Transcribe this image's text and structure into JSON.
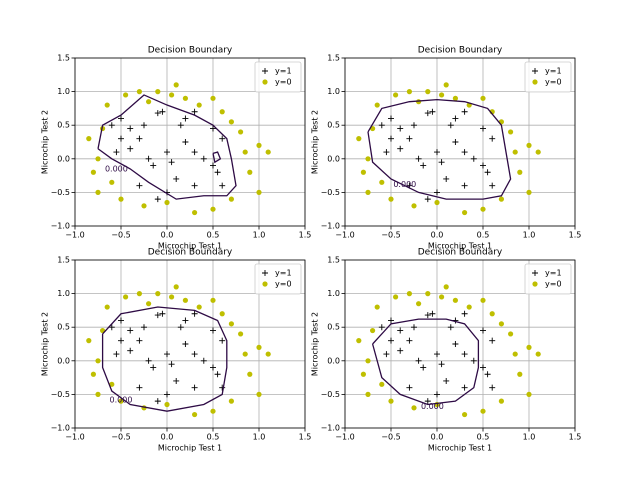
{
  "chart_data": [
    {
      "type": "scatter",
      "title": "Decision Boundary",
      "xlabel": "Microchip Test 1",
      "ylabel": "Microchip Test 2",
      "xlim": [
        -1,
        1.5
      ],
      "ylim": [
        -1,
        1.5
      ],
      "xticks": [
        {
          "value": -1,
          "label": "−1.0"
        },
        {
          "value": -0.5,
          "label": "−0.5"
        },
        {
          "value": 0,
          "label": "0.0"
        },
        {
          "value": 0.5,
          "label": "0.5"
        },
        {
          "value": 1,
          "label": "1.0"
        },
        {
          "value": 1.5,
          "label": "1.5"
        }
      ],
      "yticks": [
        {
          "value": -1,
          "label": "−1.0"
        },
        {
          "value": -0.5,
          "label": "−0.5"
        },
        {
          "value": 0,
          "label": "0.0"
        },
        {
          "value": 0.5,
          "label": "0.5"
        },
        {
          "value": 1,
          "label": "1.0"
        },
        {
          "value": 1.5,
          "label": "1.5"
        }
      ],
      "grid": true,
      "legend": "upper right",
      "series": [
        {
          "name": "y=1",
          "color": "#000000",
          "marker": "+",
          "x": [
            -0.05,
            -0.1,
            -0.25,
            -0.4,
            -0.5,
            -0.6,
            -0.3,
            -0.5,
            -0.55,
            -0.4,
            -0.2,
            0.0,
            -0.15,
            0.2,
            0.3,
            0.4,
            0.5,
            0.55,
            0.6,
            0.3,
            0.1,
            0.0,
            -0.1,
            0.15,
            0.2,
            0.3,
            0.5,
            0.6,
            0.05,
            -0.3
          ],
          "y": [
            0.7,
            0.68,
            0.5,
            0.45,
            0.6,
            0.5,
            0.3,
            0.3,
            0.1,
            0.15,
            0.0,
            0.1,
            -0.1,
            0.25,
            0.1,
            0.0,
            -0.1,
            -0.2,
            -0.4,
            -0.4,
            -0.3,
            -0.5,
            -0.6,
            0.5,
            0.6,
            0.7,
            0.45,
            0.3,
            -0.05,
            -0.4
          ]
        },
        {
          "name": "y=0",
          "color": "#bfbf00",
          "marker": "o",
          "x": [
            -0.3,
            -0.1,
            0.1,
            0.2,
            0.35,
            0.5,
            0.6,
            0.7,
            0.8,
            0.85,
            1.0,
            1.1,
            0.9,
            1.0,
            0.7,
            0.5,
            0.3,
            0.0,
            -0.25,
            -0.5,
            -0.6,
            -0.75,
            -0.8,
            -0.75,
            -0.85,
            -0.7,
            -0.65,
            -0.45,
            -0.2,
            0.05
          ],
          "y": [
            1.0,
            1.0,
            1.1,
            0.9,
            0.8,
            0.9,
            0.7,
            0.55,
            0.4,
            0.1,
            0.2,
            0.1,
            -0.2,
            -0.5,
            -0.6,
            -0.75,
            -0.8,
            -0.65,
            -0.7,
            -0.6,
            -0.35,
            -0.5,
            -0.2,
            0.0,
            0.3,
            0.45,
            0.8,
            0.95,
            0.85,
            0.95
          ]
        }
      ],
      "contour": {
        "color": "#2e0b45",
        "x": [
          -0.75,
          -0.7,
          -0.5,
          -0.25,
          0,
          0.3,
          0.5,
          0.65,
          0.7,
          0.75,
          0.65,
          0.4,
          0.1,
          -0.2,
          -0.4,
          -0.6,
          -0.75,
          null,
          0.5,
          0.55,
          0.58,
          0.52,
          0.5
        ],
        "y": [
          0.15,
          0.5,
          0.65,
          0.95,
          0.8,
          0.65,
          0.5,
          0.3,
          0.0,
          -0.4,
          -0.55,
          -0.55,
          -0.6,
          -0.35,
          -0.15,
          0.0,
          0.15,
          null,
          0.08,
          0.1,
          0.0,
          -0.05,
          0.08
        ]
      },
      "annotations": [
        {
          "text": "0.000",
          "x": -0.55,
          "y": -0.15
        }
      ]
    },
    {
      "type": "scatter",
      "title": "Decision Boundary",
      "xlabel": "Microchip Test 1",
      "ylabel": "Microchip Test 2",
      "xlim": [
        -1,
        1.5
      ],
      "ylim": [
        -1,
        1.5
      ],
      "xticks": [
        {
          "value": -1,
          "label": "−1.0"
        },
        {
          "value": -0.5,
          "label": "−0.5"
        },
        {
          "value": 0,
          "label": "0.0"
        },
        {
          "value": 0.5,
          "label": "0.5"
        },
        {
          "value": 1,
          "label": "1.0"
        },
        {
          "value": 1.5,
          "label": "1.5"
        }
      ],
      "yticks": [
        {
          "value": -1,
          "label": "−1.0"
        },
        {
          "value": -0.5,
          "label": "−0.5"
        },
        {
          "value": 0,
          "label": "0.0"
        },
        {
          "value": 0.5,
          "label": "0.5"
        },
        {
          "value": 1,
          "label": "1.0"
        },
        {
          "value": 1.5,
          "label": "1.5"
        }
      ],
      "grid": true,
      "legend": "upper right",
      "series": [
        {
          "name": "y=1",
          "color": "#000000",
          "marker": "+",
          "x": [
            -0.05,
            -0.1,
            -0.25,
            -0.4,
            -0.5,
            -0.6,
            -0.3,
            -0.5,
            -0.55,
            -0.4,
            -0.2,
            0.0,
            -0.15,
            0.2,
            0.3,
            0.4,
            0.5,
            0.55,
            0.6,
            0.3,
            0.1,
            0.0,
            -0.1,
            0.15,
            0.2,
            0.3,
            0.5,
            0.6,
            0.05,
            -0.3
          ],
          "y": [
            0.7,
            0.68,
            0.5,
            0.45,
            0.6,
            0.5,
            0.3,
            0.3,
            0.1,
            0.15,
            0.0,
            0.1,
            -0.1,
            0.25,
            0.1,
            0.0,
            -0.1,
            -0.2,
            -0.4,
            -0.4,
            -0.3,
            -0.5,
            -0.6,
            0.5,
            0.6,
            0.7,
            0.45,
            0.3,
            -0.05,
            -0.4
          ]
        },
        {
          "name": "y=0",
          "color": "#bfbf00",
          "marker": "o",
          "x": [
            -0.3,
            -0.1,
            0.1,
            0.2,
            0.35,
            0.5,
            0.6,
            0.7,
            0.8,
            0.85,
            1.0,
            1.1,
            0.9,
            1.0,
            0.7,
            0.5,
            0.3,
            0.0,
            -0.25,
            -0.5,
            -0.6,
            -0.75,
            -0.8,
            -0.75,
            -0.85,
            -0.7,
            -0.65,
            -0.45,
            -0.2,
            0.05
          ],
          "y": [
            1.0,
            1.0,
            1.1,
            0.9,
            0.8,
            0.9,
            0.7,
            0.55,
            0.4,
            0.1,
            0.2,
            0.1,
            -0.2,
            -0.5,
            -0.6,
            -0.75,
            -0.8,
            -0.65,
            -0.7,
            -0.6,
            -0.35,
            -0.5,
            -0.2,
            0.0,
            0.3,
            0.45,
            0.8,
            0.95,
            0.85,
            0.95
          ]
        }
      ],
      "contour": {
        "color": "#2e0b45",
        "x": [
          -0.75,
          -0.6,
          -0.3,
          0,
          0.3,
          0.55,
          0.7,
          0.75,
          0.8,
          0.7,
          0.5,
          0.1,
          -0.2,
          -0.5,
          -0.7,
          -0.75
        ],
        "y": [
          0.4,
          0.75,
          0.85,
          0.88,
          0.85,
          0.75,
          0.5,
          0.1,
          -0.3,
          -0.55,
          -0.6,
          -0.6,
          -0.5,
          -0.3,
          -0.05,
          0.4
        ]
      },
      "annotations": [
        {
          "text": "0.000",
          "x": -0.35,
          "y": -0.38
        }
      ]
    },
    {
      "type": "scatter",
      "title": "Decision Boundary",
      "xlabel": "Microchip Test 1",
      "ylabel": "Microchip Test 2",
      "xlim": [
        -1,
        1.5
      ],
      "ylim": [
        -1,
        1.5
      ],
      "xticks": [
        {
          "value": -1,
          "label": "−1.0"
        },
        {
          "value": -0.5,
          "label": "−0.5"
        },
        {
          "value": 0,
          "label": "0.0"
        },
        {
          "value": 0.5,
          "label": "0.5"
        },
        {
          "value": 1,
          "label": "1.0"
        },
        {
          "value": 1.5,
          "label": "1.5"
        }
      ],
      "yticks": [
        {
          "value": -1,
          "label": "−1.0"
        },
        {
          "value": -0.5,
          "label": "−0.5"
        },
        {
          "value": 0,
          "label": "0.0"
        },
        {
          "value": 0.5,
          "label": "0.5"
        },
        {
          "value": 1,
          "label": "1.0"
        },
        {
          "value": 1.5,
          "label": "1.5"
        }
      ],
      "grid": true,
      "legend": "upper right",
      "series": [
        {
          "name": "y=1",
          "color": "#000000",
          "marker": "+",
          "x": [
            -0.05,
            -0.1,
            -0.25,
            -0.4,
            -0.5,
            -0.6,
            -0.3,
            -0.5,
            -0.55,
            -0.4,
            -0.2,
            0.0,
            -0.15,
            0.2,
            0.3,
            0.4,
            0.5,
            0.55,
            0.6,
            0.3,
            0.1,
            0.0,
            -0.1,
            0.15,
            0.2,
            0.3,
            0.5,
            0.6,
            0.05,
            -0.3
          ],
          "y": [
            0.7,
            0.68,
            0.5,
            0.45,
            0.6,
            0.5,
            0.3,
            0.3,
            0.1,
            0.15,
            0.0,
            0.1,
            -0.1,
            0.25,
            0.1,
            0.0,
            -0.1,
            -0.2,
            -0.4,
            -0.4,
            -0.3,
            -0.5,
            -0.6,
            0.5,
            0.6,
            0.7,
            0.45,
            0.3,
            -0.05,
            -0.4
          ]
        },
        {
          "name": "y=0",
          "color": "#bfbf00",
          "marker": "o",
          "x": [
            -0.3,
            -0.1,
            0.1,
            0.2,
            0.35,
            0.5,
            0.6,
            0.7,
            0.8,
            0.85,
            1.0,
            1.1,
            0.9,
            1.0,
            0.7,
            0.5,
            0.3,
            0.0,
            -0.25,
            -0.5,
            -0.6,
            -0.75,
            -0.8,
            -0.75,
            -0.85,
            -0.7,
            -0.65,
            -0.45,
            -0.2,
            0.05
          ],
          "y": [
            1.0,
            1.0,
            1.1,
            0.9,
            0.8,
            0.9,
            0.7,
            0.55,
            0.4,
            0.1,
            0.2,
            0.1,
            -0.2,
            -0.5,
            -0.6,
            -0.75,
            -0.8,
            -0.65,
            -0.7,
            -0.6,
            -0.35,
            -0.5,
            -0.2,
            0.0,
            0.3,
            0.45,
            0.8,
            0.95,
            0.85,
            0.95
          ]
        }
      ],
      "contour": {
        "color": "#2e0b45",
        "x": [
          -0.7,
          -0.5,
          -0.1,
          0.3,
          0.55,
          0.65,
          0.65,
          0.6,
          0.4,
          0,
          -0.4,
          -0.6,
          -0.7,
          -0.7
        ],
        "y": [
          0.4,
          0.7,
          0.8,
          0.75,
          0.6,
          0.3,
          -0.1,
          -0.5,
          -0.65,
          -0.75,
          -0.65,
          -0.45,
          -0.1,
          0.4
        ]
      },
      "annotations": [
        {
          "text": "0.000",
          "x": -0.5,
          "y": -0.58
        }
      ]
    },
    {
      "type": "scatter",
      "title": "Decision Boundary",
      "xlabel": "Microchip Test 1",
      "ylabel": "Microchip Test 2",
      "xlim": [
        -1,
        1.5
      ],
      "ylim": [
        -1,
        1.5
      ],
      "xticks": [
        {
          "value": -1,
          "label": "−1.0"
        },
        {
          "value": -0.5,
          "label": "−0.5"
        },
        {
          "value": 0,
          "label": "0.0"
        },
        {
          "value": 0.5,
          "label": "0.5"
        },
        {
          "value": 1,
          "label": "1.0"
        },
        {
          "value": 1.5,
          "label": "1.5"
        }
      ],
      "yticks": [
        {
          "value": -1,
          "label": "−1.0"
        },
        {
          "value": -0.5,
          "label": "−0.5"
        },
        {
          "value": 0,
          "label": "0.0"
        },
        {
          "value": 0.5,
          "label": "0.5"
        },
        {
          "value": 1,
          "label": "1.0"
        },
        {
          "value": 1.5,
          "label": "1.5"
        }
      ],
      "grid": true,
      "legend": "upper right",
      "series": [
        {
          "name": "y=1",
          "color": "#000000",
          "marker": "+",
          "x": [
            -0.05,
            -0.1,
            -0.25,
            -0.4,
            -0.5,
            -0.6,
            -0.3,
            -0.5,
            -0.55,
            -0.4,
            -0.2,
            0.0,
            -0.15,
            0.2,
            0.3,
            0.4,
            0.5,
            0.55,
            0.6,
            0.3,
            0.1,
            0.0,
            -0.1,
            0.15,
            0.2,
            0.3,
            0.5,
            0.6,
            0.05,
            -0.3
          ],
          "y": [
            0.7,
            0.68,
            0.5,
            0.45,
            0.6,
            0.5,
            0.3,
            0.3,
            0.1,
            0.15,
            0.0,
            0.1,
            -0.1,
            0.25,
            0.1,
            0.0,
            -0.1,
            -0.2,
            -0.4,
            -0.4,
            -0.3,
            -0.5,
            -0.6,
            0.5,
            0.6,
            0.7,
            0.45,
            0.3,
            -0.05,
            -0.4
          ]
        },
        {
          "name": "y=0",
          "color": "#bfbf00",
          "marker": "o",
          "x": [
            -0.3,
            -0.1,
            0.1,
            0.2,
            0.35,
            0.5,
            0.6,
            0.7,
            0.8,
            0.85,
            1.0,
            1.1,
            0.9,
            1.0,
            0.7,
            0.5,
            0.3,
            0.0,
            -0.25,
            -0.5,
            -0.6,
            -0.75,
            -0.8,
            -0.75,
            -0.85,
            -0.7,
            -0.65,
            -0.45,
            -0.2,
            0.05
          ],
          "y": [
            1.0,
            1.0,
            1.1,
            0.9,
            0.8,
            0.9,
            0.7,
            0.55,
            0.4,
            0.1,
            0.2,
            0.1,
            -0.2,
            -0.5,
            -0.6,
            -0.75,
            -0.8,
            -0.65,
            -0.7,
            -0.6,
            -0.35,
            -0.5,
            -0.2,
            0.0,
            0.3,
            0.45,
            0.8,
            0.95,
            0.85,
            0.95
          ]
        }
      ],
      "contour": {
        "color": "#2e0b45",
        "x": [
          -0.7,
          -0.5,
          -0.2,
          0.1,
          0.3,
          0.45,
          0.45,
          0.4,
          0.2,
          -0.1,
          -0.4,
          -0.6,
          -0.7
        ],
        "y": [
          0.25,
          0.55,
          0.62,
          0.62,
          0.55,
          0.3,
          -0.1,
          -0.4,
          -0.6,
          -0.65,
          -0.5,
          -0.25,
          0.25
        ]
      },
      "annotations": [
        {
          "text": "0.000",
          "x": -0.05,
          "y": -0.68
        }
      ]
    }
  ]
}
